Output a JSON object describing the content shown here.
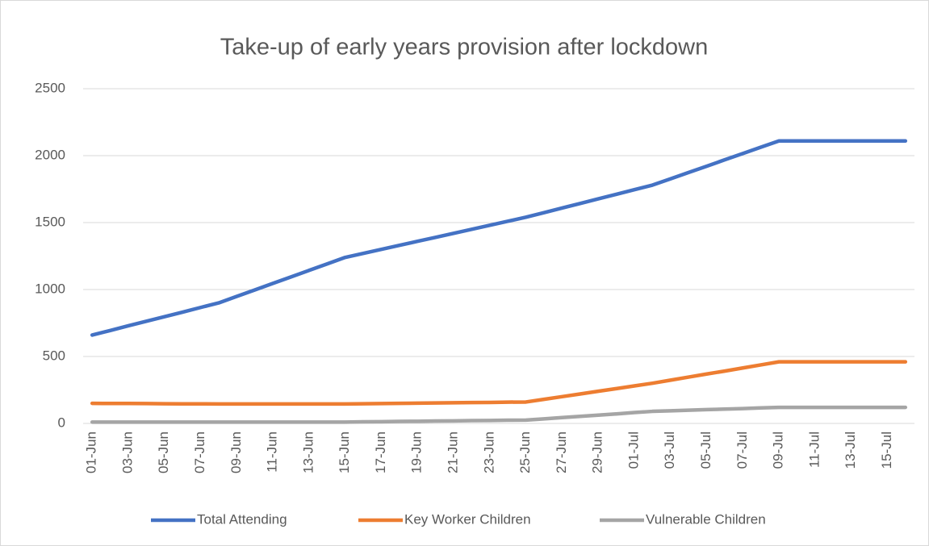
{
  "chart_data": {
    "type": "line",
    "title": "Take-up of early years provision after lockdown",
    "categories": [
      "01-Jun",
      null,
      "03-Jun",
      null,
      "05-Jun",
      null,
      "07-Jun",
      null,
      "09-Jun",
      null,
      "11-Jun",
      null,
      "13-Jun",
      null,
      "15-Jun",
      null,
      "17-Jun",
      null,
      "19-Jun",
      null,
      "21-Jun",
      null,
      "23-Jun",
      null,
      "25-Jun",
      null,
      "27-Jun",
      null,
      "29-Jun",
      null,
      "01-Jul",
      null,
      "03-Jul",
      null,
      "05-Jul",
      null,
      "07-Jul",
      null,
      "09-Jul",
      null,
      "11-Jul",
      null,
      "13-Jul",
      null,
      "15-Jul",
      null
    ],
    "series": [
      {
        "name": "Total Attending",
        "color": "#4472c4",
        "values": [
          660,
          694,
          729,
          763,
          797,
          831,
          866,
          900,
          949,
          997,
          1046,
          1094,
          1143,
          1191,
          1240,
          1270,
          1300,
          1330,
          1360,
          1390,
          1420,
          1450,
          1480,
          1510,
          1540,
          1574,
          1609,
          1643,
          1677,
          1711,
          1746,
          1780,
          1827,
          1874,
          1921,
          1969,
          2016,
          2063,
          2110,
          2110,
          2110,
          2110,
          2110,
          2110,
          2110,
          2110
        ]
      },
      {
        "name": "Key Worker Children",
        "color": "#ed7d31",
        "values": [
          150,
          149,
          149,
          148,
          147,
          146,
          146,
          145,
          145,
          145,
          145,
          145,
          145,
          145,
          145,
          147,
          148,
          150,
          151,
          153,
          154,
          156,
          157,
          159,
          160,
          180,
          200,
          220,
          240,
          260,
          280,
          300,
          323,
          346,
          369,
          391,
          414,
          437,
          460,
          460,
          460,
          460,
          460,
          460,
          460,
          460
        ]
      },
      {
        "name": "Vulnerable Children",
        "color": "#a5a5a5",
        "values": [
          10,
          10,
          10,
          10,
          10,
          10,
          10,
          10,
          10,
          10,
          10,
          10,
          10,
          10,
          10,
          12,
          13,
          15,
          16,
          18,
          19,
          21,
          22,
          24,
          25,
          34,
          44,
          53,
          62,
          71,
          81,
          90,
          94,
          99,
          103,
          107,
          111,
          116,
          120,
          120,
          120,
          120,
          120,
          120,
          120,
          120
        ]
      }
    ],
    "ylim": [
      0,
      2500
    ],
    "yticks": [
      0,
      500,
      1000,
      1500,
      2000,
      2500
    ],
    "grid": true,
    "legend": "bottom"
  }
}
